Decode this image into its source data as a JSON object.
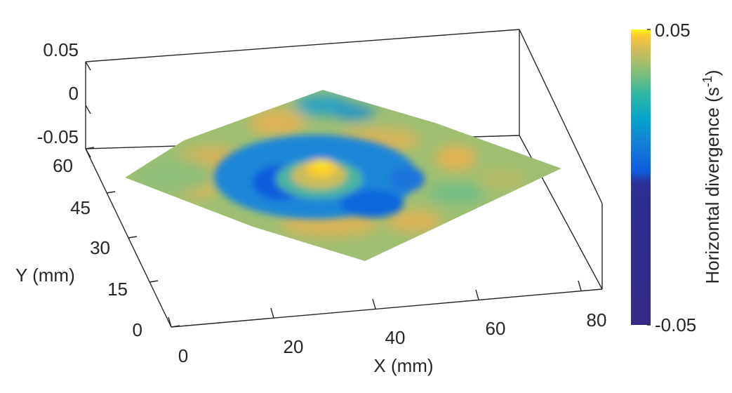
{
  "chart_data": {
    "type": "surface",
    "title": "",
    "xlabel": "X (mm)",
    "ylabel": "Y (mm)",
    "zlabel": "",
    "x_ticks": [
      "0",
      "20",
      "40",
      "60",
      "80"
    ],
    "y_ticks": [
      "0",
      "15",
      "30",
      "45",
      "60"
    ],
    "z_ticks": [
      "-0.05",
      "0",
      "0.05"
    ],
    "xlim": [
      0,
      90
    ],
    "ylim": [
      0,
      65
    ],
    "zlim": [
      -0.05,
      0.05
    ],
    "colorbar": {
      "label": "Horizontal divergence (s",
      "label_sup": "-1",
      "label_end": ")",
      "min_label": "-0.05",
      "max_label": "0.05",
      "range": [
        -0.05,
        0.05
      ],
      "colors": [
        "#352a87",
        "#0f5cdd",
        "#1481d6",
        "#06a4ca",
        "#2eb7a4",
        "#87bf77",
        "#d1bb59",
        "#fec832",
        "#f9fb0e"
      ]
    },
    "surface": {
      "description_values": "horizontal divergence field, mostly near 0.01-0.03 with a central positive peak of about 0.05 at (28, 38) mm surrounded by a negative ring of about -0.02",
      "peak": {
        "x": 28,
        "y": 38,
        "z": 0.05
      },
      "ring_min": -0.02,
      "background_range": [
        0.0,
        0.035
      ]
    }
  }
}
